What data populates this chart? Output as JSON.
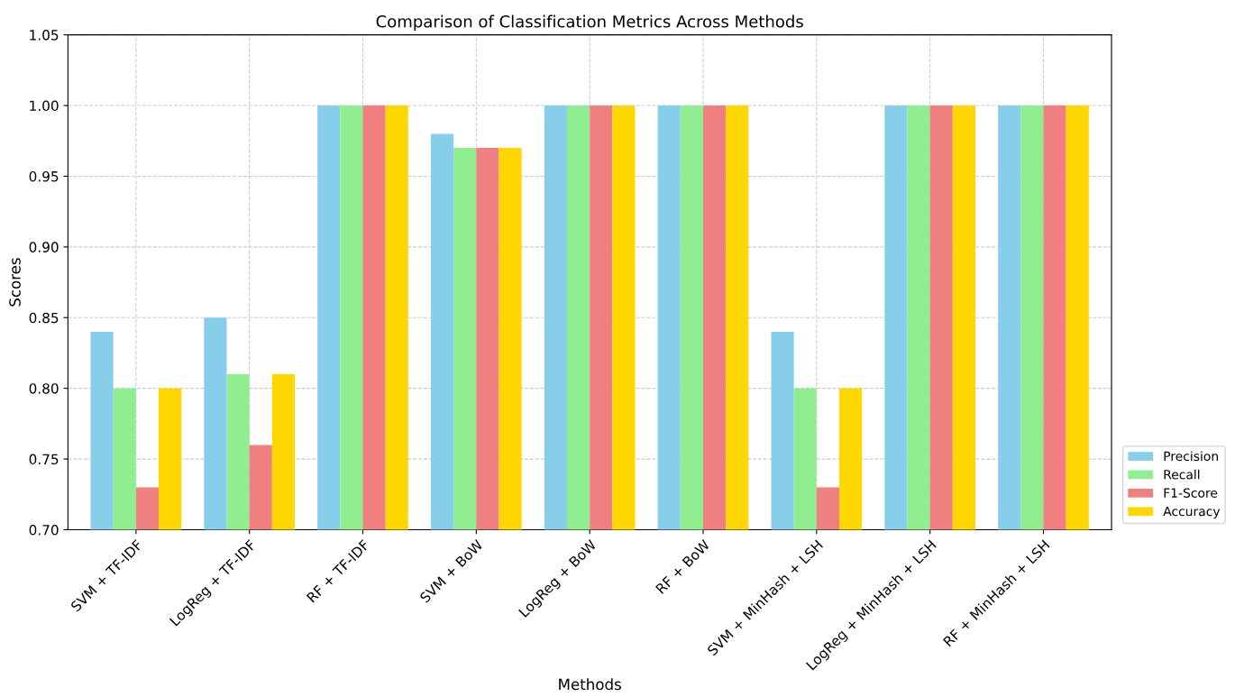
{
  "chart_data": {
    "type": "bar",
    "title": "Comparison of Classification Metrics Across Methods",
    "xlabel": "Methods",
    "ylabel": "Scores",
    "categories": [
      "SVM + TF-IDF",
      "LogReg + TF-IDF",
      "RF + TF-IDF",
      "SVM + BoW",
      "LogReg + BoW",
      "RF + BoW",
      "SVM + MinHash + LSH",
      "LogReg + MinHash + LSH",
      "RF + MinHash + LSH"
    ],
    "series": [
      {
        "name": "Precision",
        "color": "#87ceeb",
        "values": [
          0.84,
          0.85,
          1.0,
          0.98,
          1.0,
          1.0,
          0.84,
          1.0,
          1.0
        ]
      },
      {
        "name": "Recall",
        "color": "#90ee90",
        "values": [
          0.8,
          0.81,
          1.0,
          0.97,
          1.0,
          1.0,
          0.8,
          1.0,
          1.0
        ]
      },
      {
        "name": "F1-Score",
        "color": "#f08080",
        "values": [
          0.73,
          0.76,
          1.0,
          0.97,
          1.0,
          1.0,
          0.73,
          1.0,
          1.0
        ]
      },
      {
        "name": "Accuracy",
        "color": "#ffd700",
        "values": [
          0.8,
          0.81,
          1.0,
          0.97,
          1.0,
          1.0,
          0.8,
          1.0,
          1.0
        ]
      }
    ],
    "ylim": [
      0.7,
      1.05
    ],
    "yticks": [
      {
        "value": 0.7,
        "label": "0.70"
      },
      {
        "value": 0.75,
        "label": "0.75"
      },
      {
        "value": 0.8,
        "label": "0.80"
      },
      {
        "value": 0.85,
        "label": "0.85"
      },
      {
        "value": 0.9,
        "label": "0.90"
      },
      {
        "value": 0.95,
        "label": "0.95"
      },
      {
        "value": 1.0,
        "label": "1.00"
      },
      {
        "value": 1.05,
        "label": "1.05"
      }
    ],
    "grid": true,
    "legend": "bottom right"
  }
}
